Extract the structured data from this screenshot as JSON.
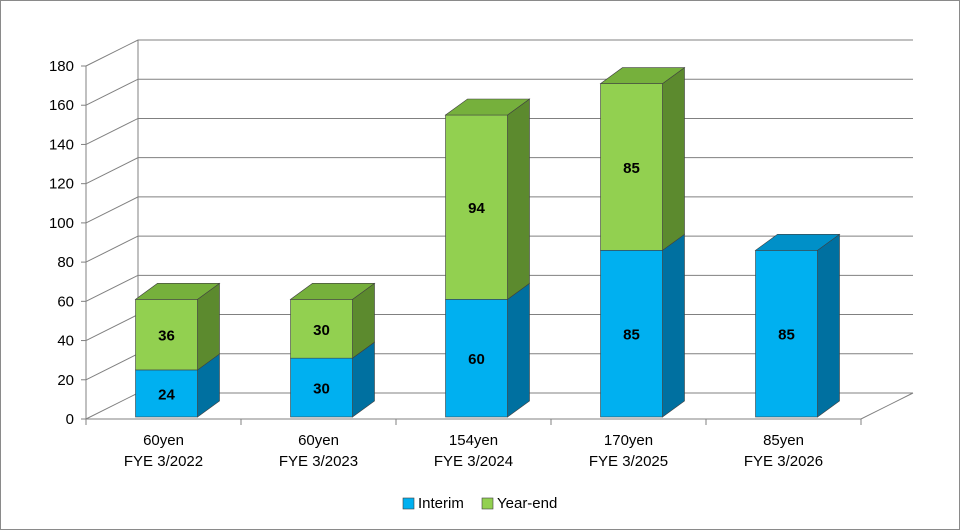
{
  "chart_data": {
    "type": "bar",
    "stacked": true,
    "style": "3d",
    "categories": [
      [
        "60yen",
        "FYE 3/2022"
      ],
      [
        "60yen",
        "FYE 3/2023"
      ],
      [
        "154yen",
        "FYE 3/2024"
      ],
      [
        "170yen",
        "FYE 3/2025"
      ],
      [
        "85yen",
        "FYE 3/2026"
      ]
    ],
    "series": [
      {
        "name": "Interim",
        "values": [
          24,
          30,
          60,
          85,
          85
        ],
        "color": "#00b0f0",
        "side_color": "#0070a0",
        "top_color": "#0090c8"
      },
      {
        "name": "Year-end",
        "values": [
          36,
          30,
          94,
          85,
          null
        ],
        "color": "#92d050",
        "side_color": "#5c8a2e",
        "top_color": "#76b03c"
      }
    ],
    "data_labels": [
      [
        "24",
        "30",
        "60",
        "85",
        "85"
      ],
      [
        "36",
        "30",
        "94",
        "85",
        ""
      ]
    ],
    "y_ticks": [
      "0",
      "20",
      "40",
      "60",
      "80",
      "100",
      "120",
      "140",
      "160",
      "180"
    ],
    "ylim": [
      0,
      180
    ],
    "grid": true,
    "legend_position": "bottom",
    "title": "",
    "xlabel": "",
    "ylabel": ""
  }
}
